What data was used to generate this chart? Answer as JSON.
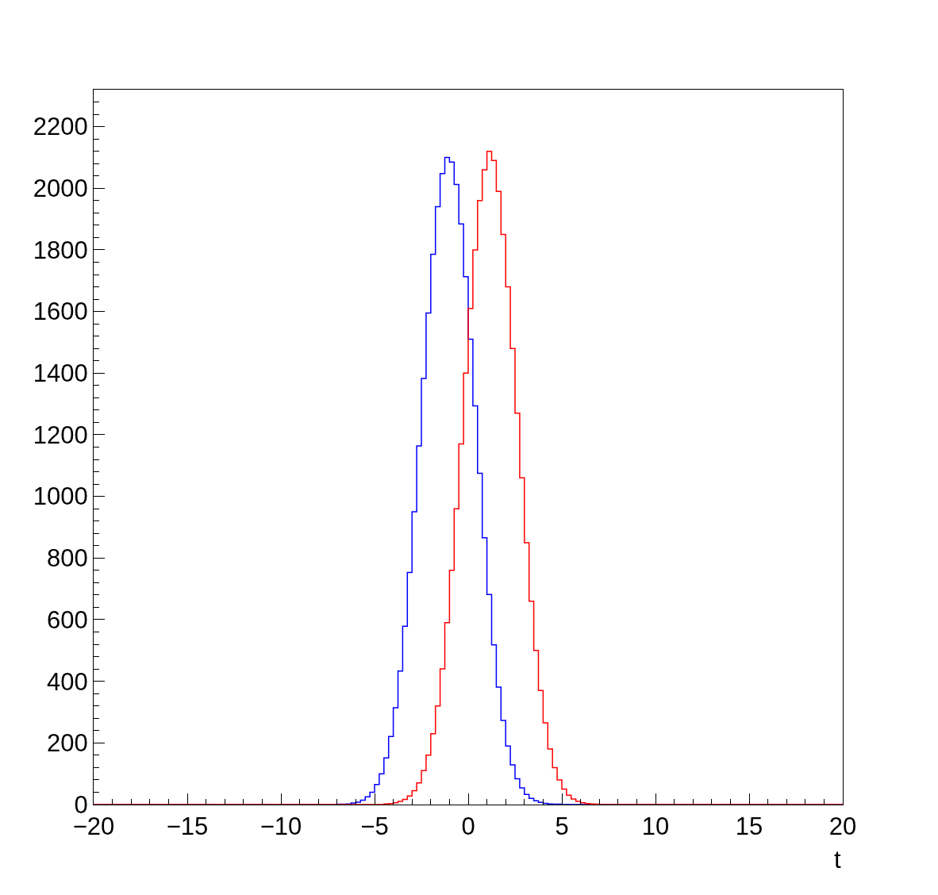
{
  "chart_data": {
    "type": "histogram",
    "xlabel": "t",
    "bins": [
      -20,
      -7,
      -6.75,
      -6.5,
      -6.25,
      -6,
      -5.75,
      -5.5,
      -5.25,
      -5,
      -4.75,
      -4.5,
      -4.25,
      -4,
      -3.75,
      -3.5,
      -3.25,
      -3,
      -2.75,
      -2.5,
      -2.25,
      -2,
      -1.75,
      -1.5,
      -1.25,
      -1,
      -0.75,
      -0.5,
      -0.25,
      0,
      0.25,
      0.5,
      0.75,
      1,
      1.25,
      1.5,
      1.75,
      2,
      2.25,
      2.5,
      2.75,
      3,
      3.25,
      3.5,
      3.75,
      4,
      4.25,
      4.5,
      4.75,
      5,
      5.25,
      5.5,
      5.75,
      6,
      6.25,
      6.5,
      6.75,
      7,
      20
    ],
    "series": [
      {
        "color": "#0000ff",
        "values": [
          0,
          1,
          1,
          2,
          5,
          8,
          14,
          25,
          40,
          65,
          100,
          151,
          221,
          314,
          433,
          579,
          753,
          950,
          1164,
          1383,
          1595,
          1786,
          1940,
          2048,
          2100,
          2085,
          2012,
          1884,
          1713,
          1510,
          1294,
          1075,
          866,
          682,
          518,
          381,
          273,
          190,
          129,
          84,
          54,
          33,
          20,
          12,
          7,
          4,
          2,
          1,
          1,
          0,
          0,
          0,
          0,
          0,
          0,
          0,
          0,
          0
        ]
      },
      {
        "color": "#ff0000",
        "values": [
          0,
          0,
          0,
          0,
          0,
          0,
          0,
          0,
          0,
          0,
          0,
          2,
          3,
          6,
          10,
          17,
          28,
          45,
          70,
          110,
          160,
          230,
          320,
          440,
          590,
          760,
          960,
          1170,
          1400,
          1610,
          1800,
          1960,
          2060,
          2120,
          2090,
          1990,
          1850,
          1680,
          1480,
          1270,
          1060,
          850,
          660,
          500,
          370,
          265,
          180,
          120,
          80,
          50,
          30,
          18,
          10,
          6,
          3,
          2,
          1,
          0
        ]
      }
    ],
    "xlim": [
      -20,
      20
    ],
    "xticks": [
      {
        "value": -20,
        "label": "−20"
      },
      {
        "value": -15,
        "label": "−15"
      },
      {
        "value": -10,
        "label": "−10"
      },
      {
        "value": -5,
        "label": "−5"
      },
      0,
      5,
      10,
      15,
      20
    ],
    "ylim": [
      0,
      2320
    ],
    "yticks": [
      0,
      200,
      400,
      600,
      800,
      1000,
      1200,
      1400,
      1600,
      1800,
      2000,
      2200
    ],
    "grid": false
  }
}
